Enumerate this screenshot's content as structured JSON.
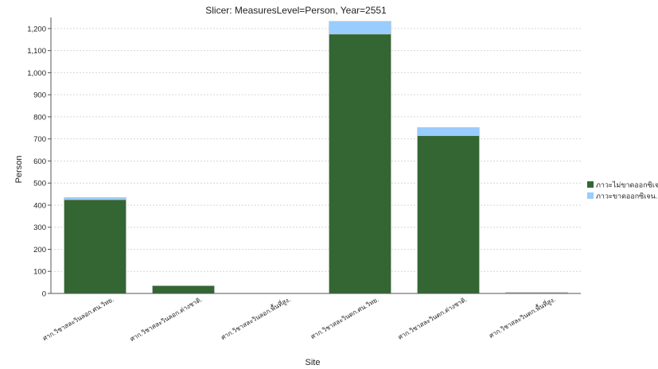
{
  "chart_data": {
    "type": "bar",
    "stacked": true,
    "title": "Slicer: MeasuresLevel=Person, Year=2551",
    "xlabel": "Site",
    "ylabel": "Person",
    "ylim": [
      0,
      1250
    ],
    "yticks": [
      0,
      100,
      200,
      300,
      400,
      500,
      600,
      700,
      800,
      900,
      1000,
      1100,
      1200
    ],
    "ytick_labels": [
      "0",
      "100",
      "200",
      "300",
      "400",
      "500",
      "600",
      "700",
      "800",
      "900",
      "1,000",
      "1,100",
      "1,200"
    ],
    "grid": true,
    "legend_position": "right",
    "categories": [
      "ศาก.วิชาสละวินลอก.ศน.วิทย.",
      "ศาก.วิชาสละวินลอก.ต่างชาติ.",
      "ศาก.วิชาสละวินลอก.พื้นที่สูง.",
      "ศาก.วิชาสละวินตก.ศน.วิทย.",
      "ศาก.วิชาสละวินตก.ต่างชาติ.",
      "ศาก.วิชาสละวินตก.พื้นที่สูง."
    ],
    "series": [
      {
        "name": "ภาวะไม่ขาดออกซิเจน.",
        "color": "#336633",
        "values": [
          425,
          35,
          0,
          1175,
          715,
          3
        ]
      },
      {
        "name": "ภาวะขาดออกซิเจน.",
        "color": "#99ccff",
        "values": [
          10,
          0,
          0,
          58,
          37,
          2
        ]
      }
    ]
  }
}
